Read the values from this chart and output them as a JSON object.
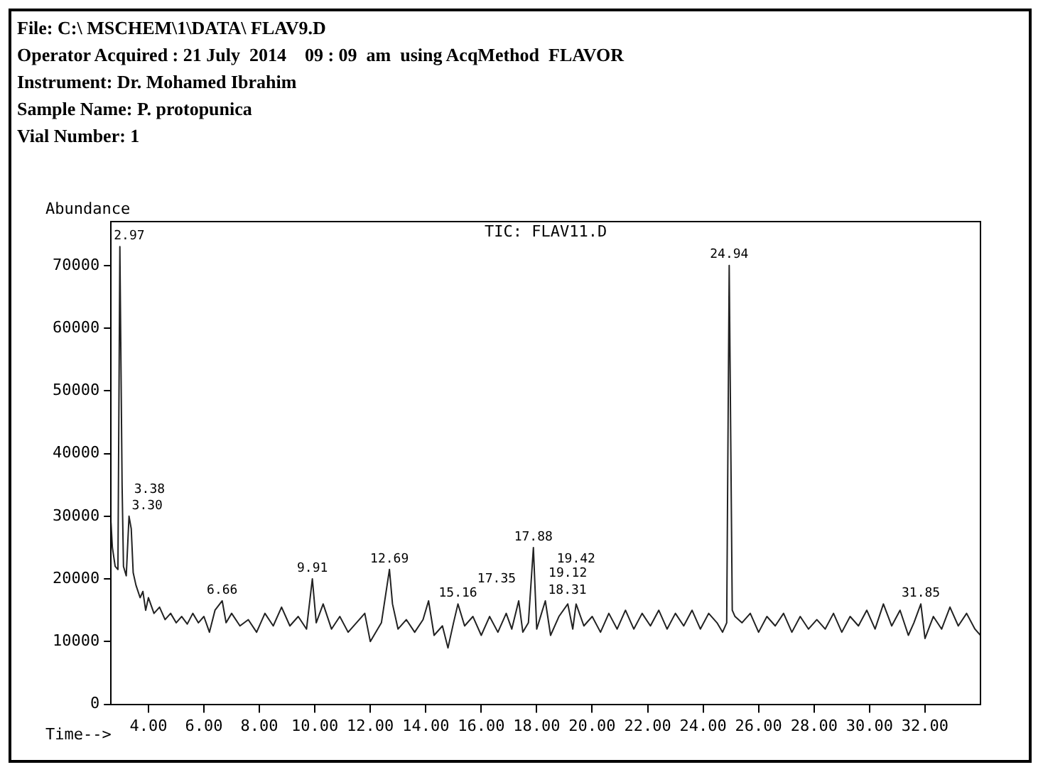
{
  "chart_data": {
    "type": "line",
    "title": "TIC: FLAV11.D",
    "xlabel": "Time-->",
    "ylabel": "Abundance",
    "annotations": [
      "File: C:\\ MSCHEM\\1\\DATA\\ FLAV9.D",
      "Operator Acquired : 21 July  2014    09 : 09  am  using AcqMethod  FLAVOR",
      "Instrument: Dr. Mohamed Ibrahim",
      "Sample Name: P. protopunica",
      "Vial Number: 1",
      {
        "text": "2.97",
        "x": 2.97,
        "y": 73000
      },
      {
        "text": "3.30",
        "x": 3.3,
        "y": 30000
      },
      {
        "text": "3.38",
        "x": 3.38,
        "y": 28000
      },
      {
        "text": "6.66",
        "x": 6.66,
        "y": 16500
      },
      {
        "text": "9.91",
        "x": 9.91,
        "y": 20000
      },
      {
        "text": "12.69",
        "x": 12.69,
        "y": 21500
      },
      {
        "text": "15.16",
        "x": 15.16,
        "y": 16000
      },
      {
        "text": "17.35",
        "x": 17.35,
        "y": 16500
      },
      {
        "text": "17.88",
        "x": 17.88,
        "y": 25000
      },
      {
        "text": "18.31",
        "x": 18.31,
        "y": 16500
      },
      {
        "text": "19.12",
        "x": 19.12,
        "y": 16000
      },
      {
        "text": "19.42",
        "x": 19.42,
        "y": 16000
      },
      {
        "text": "24.94",
        "x": 24.94,
        "y": 70000
      },
      {
        "text": "31.85",
        "x": 31.85,
        "y": 16000
      }
    ],
    "x": [
      2.65,
      2.7,
      2.8,
      2.9,
      2.97,
      3.05,
      3.1,
      3.2,
      3.3,
      3.38,
      3.45,
      3.55,
      3.7,
      3.8,
      3.9,
      4.0,
      4.2,
      4.4,
      4.6,
      4.8,
      5.0,
      5.2,
      5.4,
      5.6,
      5.8,
      6.0,
      6.2,
      6.4,
      6.66,
      6.8,
      7.0,
      7.3,
      7.6,
      7.9,
      8.2,
      8.5,
      8.8,
      9.1,
      9.4,
      9.7,
      9.91,
      10.05,
      10.3,
      10.6,
      10.9,
      11.2,
      11.5,
      11.8,
      12.0,
      12.2,
      12.4,
      12.69,
      12.8,
      13.0,
      13.3,
      13.6,
      13.9,
      14.1,
      14.3,
      14.6,
      14.8,
      15.0,
      15.16,
      15.4,
      15.7,
      16.0,
      16.3,
      16.6,
      16.9,
      17.1,
      17.35,
      17.5,
      17.7,
      17.88,
      18.0,
      18.31,
      18.5,
      18.8,
      19.12,
      19.3,
      19.42,
      19.7,
      20.0,
      20.3,
      20.6,
      20.9,
      21.2,
      21.5,
      21.8,
      22.1,
      22.4,
      22.7,
      23.0,
      23.3,
      23.6,
      23.9,
      24.2,
      24.5,
      24.7,
      24.85,
      24.94,
      25.05,
      25.15,
      25.4,
      25.7,
      26.0,
      26.3,
      26.6,
      26.9,
      27.2,
      27.5,
      27.8,
      28.1,
      28.4,
      28.7,
      29.0,
      29.3,
      29.6,
      29.9,
      30.2,
      30.5,
      30.8,
      31.1,
      31.4,
      31.6,
      31.85,
      32.0,
      32.3,
      32.6,
      32.9,
      33.2,
      33.5,
      33.8,
      34.0
    ],
    "series": [
      {
        "color": "#222222",
        "values": [
          29000,
          25000,
          22000,
          21500,
          73000,
          35000,
          22000,
          20500,
          30000,
          28000,
          21000,
          19000,
          17000,
          18000,
          15000,
          17000,
          14500,
          15500,
          13500,
          14500,
          13000,
          14000,
          12800,
          14500,
          13000,
          14000,
          11500,
          15000,
          16500,
          13000,
          14500,
          12500,
          13500,
          11500,
          14500,
          12500,
          15500,
          12500,
          14000,
          12000,
          20000,
          13000,
          16000,
          12000,
          14000,
          11500,
          13000,
          14500,
          10000,
          11500,
          13000,
          21500,
          16000,
          12000,
          13500,
          11500,
          13500,
          16500,
          11000,
          12500,
          9000,
          13000,
          16000,
          12500,
          14000,
          11000,
          14000,
          11500,
          14500,
          12000,
          16500,
          11500,
          13000,
          25000,
          12000,
          16500,
          11000,
          14000,
          16000,
          12000,
          16000,
          12500,
          14000,
          11500,
          14500,
          12000,
          15000,
          12000,
          14500,
          12500,
          15000,
          12000,
          14500,
          12500,
          15000,
          12000,
          14500,
          13000,
          11500,
          13000,
          70000,
          15000,
          14000,
          13000,
          14500,
          11500,
          14000,
          12500,
          14500,
          11500,
          14000,
          12000,
          13500,
          12000,
          14500,
          11500,
          14000,
          12500,
          15000,
          12000,
          16000,
          12500,
          15000,
          11000,
          13000,
          16000,
          10500,
          14000,
          12000,
          15500,
          12500,
          14500,
          12000,
          11000
        ]
      }
    ],
    "xlim": [
      2.65,
      34.0
    ],
    "ylim": [
      0,
      77000
    ],
    "xticks": [
      {
        "value": 4,
        "label": "4.00"
      },
      {
        "value": 6,
        "label": "6.00"
      },
      {
        "value": 8,
        "label": "8.00"
      },
      {
        "value": 10,
        "label": "10.00"
      },
      {
        "value": 12,
        "label": "12.00"
      },
      {
        "value": 14,
        "label": "14.00"
      },
      {
        "value": 16,
        "label": "16.00"
      },
      {
        "value": 18,
        "label": "18.00"
      },
      {
        "value": 20,
        "label": "20.00"
      },
      {
        "value": 22,
        "label": "22.00"
      },
      {
        "value": 24,
        "label": "24.00"
      },
      {
        "value": 26,
        "label": "26.00"
      },
      {
        "value": 28,
        "label": "28.00"
      },
      {
        "value": 30,
        "label": "30.00"
      },
      {
        "value": 32,
        "label": "32.00"
      }
    ],
    "yticks": [
      0,
      10000,
      20000,
      30000,
      40000,
      50000,
      60000,
      70000
    ],
    "grid": false,
    "legend": false,
    "marker": "none",
    "line_style": "solid"
  }
}
